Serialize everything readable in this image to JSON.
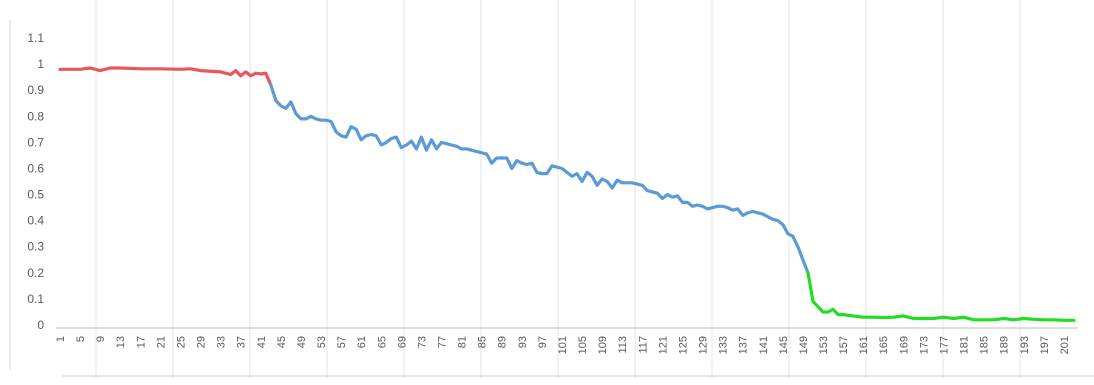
{
  "chart_data": {
    "type": "line",
    "title": "",
    "xlabel": "",
    "ylabel": "",
    "ylim": [
      0,
      1.1
    ],
    "yticks": [
      "0",
      "0.1",
      "0.2",
      "0.3",
      "0.4",
      "0.5",
      "0.6",
      "0.7",
      "0.8",
      "0.9",
      "1",
      "1.1"
    ],
    "xlim": [
      1,
      203
    ],
    "xticks": [
      "1",
      "5",
      "9",
      "13",
      "17",
      "21",
      "25",
      "29",
      "33",
      "37",
      "41",
      "45",
      "49",
      "53",
      "57",
      "61",
      "65",
      "69",
      "73",
      "77",
      "81",
      "85",
      "89",
      "93",
      "97",
      "101",
      "105",
      "109",
      "113",
      "117",
      "121",
      "125",
      "129",
      "133",
      "137",
      "141",
      "145",
      "149",
      "153",
      "157",
      "161",
      "165",
      "169",
      "173",
      "177",
      "181",
      "185",
      "189",
      "193",
      "197",
      "201"
    ],
    "grid": "vertical",
    "legend": "none",
    "series": [
      {
        "color": "#e8575a",
        "x": [
          1,
          5,
          7,
          9,
          11,
          13,
          17,
          21,
          25,
          27,
          29,
          33,
          35,
          36,
          37,
          38,
          39,
          40,
          41,
          42,
          43
        ],
        "values": [
          0.98,
          0.98,
          0.985,
          0.975,
          0.985,
          0.985,
          0.982,
          0.982,
          0.98,
          0.982,
          0.975,
          0.97,
          0.96,
          0.975,
          0.955,
          0.97,
          0.955,
          0.965,
          0.962,
          0.965,
          0.92
        ]
      },
      {
        "color": "#5b9bd5",
        "x": [
          43,
          44,
          45,
          46,
          47,
          48,
          49,
          50,
          51,
          52,
          53,
          54,
          55,
          56,
          57,
          58,
          59,
          60,
          61,
          62,
          63,
          64,
          65,
          66,
          67,
          68,
          69,
          70,
          71,
          72,
          73,
          74,
          75,
          76,
          77,
          78,
          79,
          80,
          81,
          82,
          83,
          84,
          85,
          86,
          87,
          88,
          89,
          90,
          91,
          92,
          93,
          94,
          95,
          96,
          97,
          98,
          99,
          100,
          101,
          102,
          103,
          104,
          105,
          106,
          107,
          108,
          109,
          110,
          111,
          112,
          113,
          114,
          115,
          116,
          117,
          118,
          119,
          120,
          121,
          122,
          123,
          124,
          125,
          126,
          127,
          128,
          129,
          130,
          131,
          132,
          133,
          134,
          135,
          136,
          137,
          138,
          139,
          140,
          141,
          142,
          143,
          144,
          145,
          146,
          147,
          148,
          149,
          150
        ],
        "values": [
          0.92,
          0.86,
          0.84,
          0.83,
          0.855,
          0.81,
          0.79,
          0.79,
          0.8,
          0.79,
          0.785,
          0.785,
          0.78,
          0.74,
          0.725,
          0.72,
          0.76,
          0.75,
          0.71,
          0.725,
          0.73,
          0.725,
          0.69,
          0.7,
          0.715,
          0.72,
          0.68,
          0.69,
          0.705,
          0.675,
          0.72,
          0.67,
          0.71,
          0.675,
          0.7,
          0.695,
          0.69,
          0.685,
          0.675,
          0.675,
          0.67,
          0.665,
          0.66,
          0.655,
          0.62,
          0.64,
          0.64,
          0.64,
          0.6,
          0.63,
          0.62,
          0.615,
          0.62,
          0.585,
          0.58,
          0.58,
          0.61,
          0.605,
          0.6,
          0.585,
          0.57,
          0.58,
          0.55,
          0.585,
          0.57,
          0.535,
          0.56,
          0.55,
          0.525,
          0.555,
          0.545,
          0.545,
          0.545,
          0.54,
          0.535,
          0.515,
          0.51,
          0.505,
          0.485,
          0.5,
          0.49,
          0.495,
          0.47,
          0.47,
          0.455,
          0.46,
          0.455,
          0.445,
          0.45,
          0.455,
          0.455,
          0.45,
          0.44,
          0.445,
          0.42,
          0.43,
          0.435,
          0.43,
          0.425,
          0.415,
          0.405,
          0.4,
          0.385,
          0.35,
          0.34,
          0.3,
          0.25,
          0.2
        ]
      },
      {
        "color": "#22dd22",
        "x": [
          150,
          151,
          152,
          153,
          154,
          155,
          156,
          157,
          159,
          161,
          163,
          165,
          167,
          169,
          171,
          173,
          175,
          177,
          179,
          181,
          183,
          185,
          187,
          189,
          191,
          193,
          195,
          197,
          199,
          201,
          203
        ],
        "values": [
          0.2,
          0.09,
          0.07,
          0.05,
          0.05,
          0.06,
          0.04,
          0.04,
          0.035,
          0.03,
          0.03,
          0.028,
          0.03,
          0.035,
          0.025,
          0.025,
          0.025,
          0.03,
          0.025,
          0.03,
          0.02,
          0.02,
          0.02,
          0.025,
          0.02,
          0.025,
          0.022,
          0.02,
          0.02,
          0.018,
          0.018
        ]
      }
    ]
  }
}
